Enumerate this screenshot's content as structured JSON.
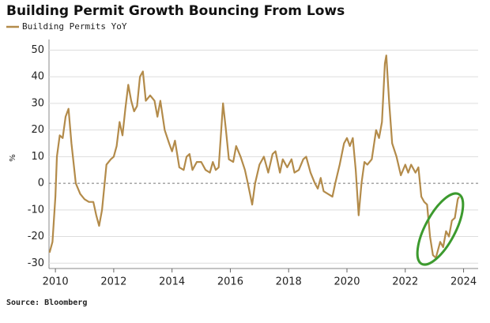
{
  "chart_data": {
    "type": "line",
    "title": "Building Permit Growth Bouncing From Lows",
    "source": "Source: Bloomberg",
    "y_label": "%",
    "series": [
      {
        "name": "Building Permits YoY",
        "color": "#b38b4a",
        "x": [
          2009.8,
          2009.9,
          2010.0,
          2010.05,
          2010.15,
          2010.25,
          2010.35,
          2010.45,
          2010.55,
          2010.7,
          2010.85,
          2011.0,
          2011.15,
          2011.3,
          2011.4,
          2011.5,
          2011.6,
          2011.75,
          2011.9,
          2012.0,
          2012.1,
          2012.2,
          2012.3,
          2012.4,
          2012.5,
          2012.6,
          2012.7,
          2012.8,
          2012.9,
          2013.0,
          2013.1,
          2013.25,
          2013.4,
          2013.5,
          2013.6,
          2013.75,
          2013.9,
          2014.0,
          2014.1,
          2014.25,
          2014.4,
          2014.5,
          2014.6,
          2014.7,
          2014.85,
          2015.0,
          2015.15,
          2015.3,
          2015.4,
          2015.5,
          2015.6,
          2015.75,
          2015.85,
          2015.95,
          2016.1,
          2016.2,
          2016.35,
          2016.5,
          2016.6,
          2016.75,
          2016.85,
          2017.0,
          2017.15,
          2017.3,
          2017.45,
          2017.55,
          2017.7,
          2017.8,
          2017.95,
          2018.1,
          2018.2,
          2018.35,
          2018.5,
          2018.6,
          2018.75,
          2018.9,
          2019.0,
          2019.1,
          2019.2,
          2019.35,
          2019.5,
          2019.6,
          2019.75,
          2019.9,
          2020.0,
          2020.1,
          2020.2,
          2020.3,
          2020.4,
          2020.5,
          2020.6,
          2020.7,
          2020.85,
          2021.0,
          2021.1,
          2021.2,
          2021.3,
          2021.35,
          2021.45,
          2021.55,
          2021.7,
          2021.85,
          2022.0,
          2022.1,
          2022.2,
          2022.35,
          2022.45,
          2022.55,
          2022.65,
          2022.75,
          2022.85,
          2022.95,
          2023.05,
          2023.2,
          2023.3,
          2023.4,
          2023.5,
          2023.6,
          2023.7,
          2023.8,
          2023.85
        ],
        "values": [
          -26,
          -22,
          -5,
          10,
          18,
          17,
          25,
          28,
          15,
          0,
          -4,
          -6,
          -7,
          -7,
          -12,
          -16,
          -10,
          7,
          9,
          10,
          14,
          23,
          18,
          28,
          37,
          31,
          27,
          29,
          40,
          42,
          31,
          33,
          31,
          25,
          31,
          20,
          15,
          12,
          16,
          6,
          5,
          10,
          11,
          5,
          8,
          8,
          5,
          4,
          8,
          5,
          6,
          30,
          20,
          9,
          8,
          14,
          10,
          5,
          0,
          -8,
          0,
          7,
          10,
          4,
          11,
          12,
          4,
          9,
          6,
          9,
          4,
          5,
          9,
          10,
          4,
          0,
          -2,
          2,
          -3,
          -4,
          -5,
          0,
          7,
          15,
          17,
          14,
          17,
          5,
          -12,
          0,
          8,
          7,
          9,
          20,
          17,
          23,
          45,
          48,
          30,
          15,
          10,
          3,
          7,
          4,
          7,
          4,
          6,
          -5,
          -7,
          -8,
          -20,
          -27,
          -28,
          -22,
          -24,
          -18,
          -20,
          -14,
          -13,
          -6,
          -5
        ]
      }
    ],
    "xlim": [
      2009.78,
      2024.5
    ],
    "xticks": [
      2010,
      2012,
      2014,
      2016,
      2018,
      2020,
      2022,
      2024
    ],
    "ylim": [
      -32,
      54
    ],
    "yticks": [
      -30,
      -20,
      -10,
      0,
      10,
      20,
      30,
      40,
      50
    ],
    "grid": true
  }
}
